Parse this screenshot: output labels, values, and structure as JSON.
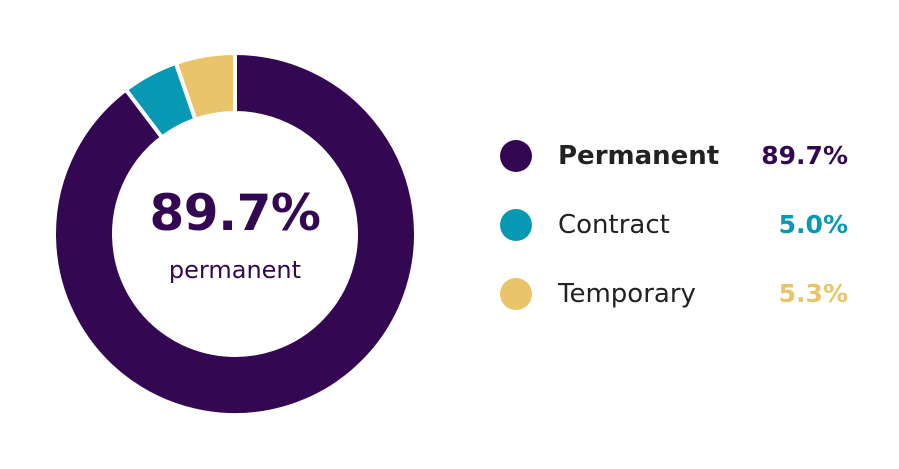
{
  "chart_data": {
    "type": "pie",
    "style": "donut",
    "categories": [
      "Permanent",
      "Contract",
      "Temporary"
    ],
    "values": [
      89.7,
      5.0,
      5.3
    ],
    "value_labels": [
      "89.7%",
      "5.0%",
      "5.3%"
    ],
    "colors": [
      "#330751",
      "#0798b3",
      "#e9c46a"
    ],
    "center": {
      "value": "89.7%",
      "label": "permanent"
    },
    "legend": {
      "placement": "right",
      "items": [
        {
          "name": "Permanent",
          "value": "89.7%",
          "color": "#330751",
          "bold": true
        },
        {
          "name": "Contract",
          "value": "5.0%",
          "color": "#0798b3",
          "bold": false
        },
        {
          "name": "Temporary",
          "value": "5.3%",
          "color": "#e9c46a",
          "bold": false
        }
      ]
    },
    "title": "",
    "xlabel": "",
    "ylabel": ""
  }
}
